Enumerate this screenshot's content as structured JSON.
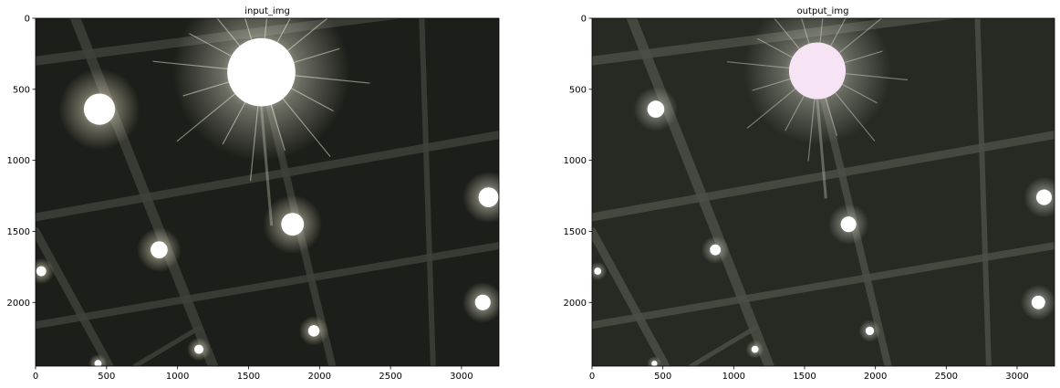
{
  "chart_data": [
    {
      "type": "image",
      "title": "input_img",
      "xlim": [
        0,
        3264
      ],
      "ylim": [
        2448,
        0
      ],
      "x_ticks": [
        0,
        500,
        1000,
        1500,
        2000,
        2500,
        3000
      ],
      "y_ticks": [
        0,
        500,
        1000,
        1500,
        2000
      ],
      "background_color": "#1c1e19",
      "beam_color": "#3e4039",
      "lights": [
        {
          "x": 1590,
          "y": 380,
          "r": 240,
          "core": "#ffffff",
          "glow": "#fffde8",
          "star": true
        },
        {
          "x": 450,
          "y": 640,
          "r": 110,
          "core": "#ffffff",
          "glow": "#fff6d8",
          "star": false
        },
        {
          "x": 1810,
          "y": 1450,
          "r": 80,
          "core": "#ffffff",
          "glow": "#fff6d8",
          "star": false
        },
        {
          "x": 870,
          "y": 1630,
          "r": 60,
          "core": "#ffffff",
          "glow": "#fff6d8",
          "star": false
        },
        {
          "x": 3190,
          "y": 1260,
          "r": 70,
          "core": "#ffffff",
          "glow": "#fffbe8",
          "star": false
        },
        {
          "x": 3150,
          "y": 2000,
          "r": 55,
          "core": "#ffffff",
          "glow": "#fffbe8",
          "star": false
        },
        {
          "x": 40,
          "y": 1780,
          "r": 35,
          "core": "#ffffff",
          "glow": "#fff6d8",
          "star": false
        },
        {
          "x": 1960,
          "y": 2200,
          "r": 40,
          "core": "#ffffff",
          "glow": "#fff6d8",
          "star": false
        },
        {
          "x": 1150,
          "y": 2330,
          "r": 32,
          "core": "#ffffff",
          "glow": "#fff6d8",
          "star": false
        },
        {
          "x": 440,
          "y": 2430,
          "r": 25,
          "core": "#ffffff",
          "glow": "#fff6d8",
          "star": false
        }
      ]
    },
    {
      "type": "image",
      "title": "output_img",
      "xlim": [
        0,
        3264
      ],
      "ylim": [
        2448,
        0
      ],
      "x_ticks": [
        0,
        500,
        1000,
        1500,
        2000,
        2500,
        3000
      ],
      "y_ticks": [
        0,
        500,
        1000,
        1500,
        2000
      ],
      "background_color": "#262a22",
      "beam_color": "#4a4e44",
      "lights": [
        {
          "x": 1590,
          "y": 370,
          "r": 200,
          "core": "#f6e4f4",
          "glow": "#dcdcd0",
          "star": true
        },
        {
          "x": 450,
          "y": 640,
          "r": 60,
          "core": "#ffffff",
          "glow": "#d8d8cc",
          "star": false
        },
        {
          "x": 1810,
          "y": 1450,
          "r": 55,
          "core": "#ffffff",
          "glow": "#d8d8cc",
          "star": false
        },
        {
          "x": 870,
          "y": 1630,
          "r": 38,
          "core": "#ffffff",
          "glow": "#d8d8cc",
          "star": false
        },
        {
          "x": 3190,
          "y": 1260,
          "r": 55,
          "core": "#ffffff",
          "glow": "#e0e0d8",
          "star": false
        },
        {
          "x": 3150,
          "y": 2000,
          "r": 48,
          "core": "#ffffff",
          "glow": "#e0e0d8",
          "star": false
        },
        {
          "x": 40,
          "y": 1780,
          "r": 25,
          "core": "#ffffff",
          "glow": "#d8d8cc",
          "star": false
        },
        {
          "x": 1960,
          "y": 2200,
          "r": 30,
          "core": "#ffffff",
          "glow": "#d8d8cc",
          "star": false
        },
        {
          "x": 1150,
          "y": 2330,
          "r": 25,
          "core": "#ffffff",
          "glow": "#d8d8cc",
          "star": false
        },
        {
          "x": 440,
          "y": 2430,
          "r": 20,
          "core": "#ffffff",
          "glow": "#d8d8cc",
          "star": false
        }
      ]
    }
  ]
}
